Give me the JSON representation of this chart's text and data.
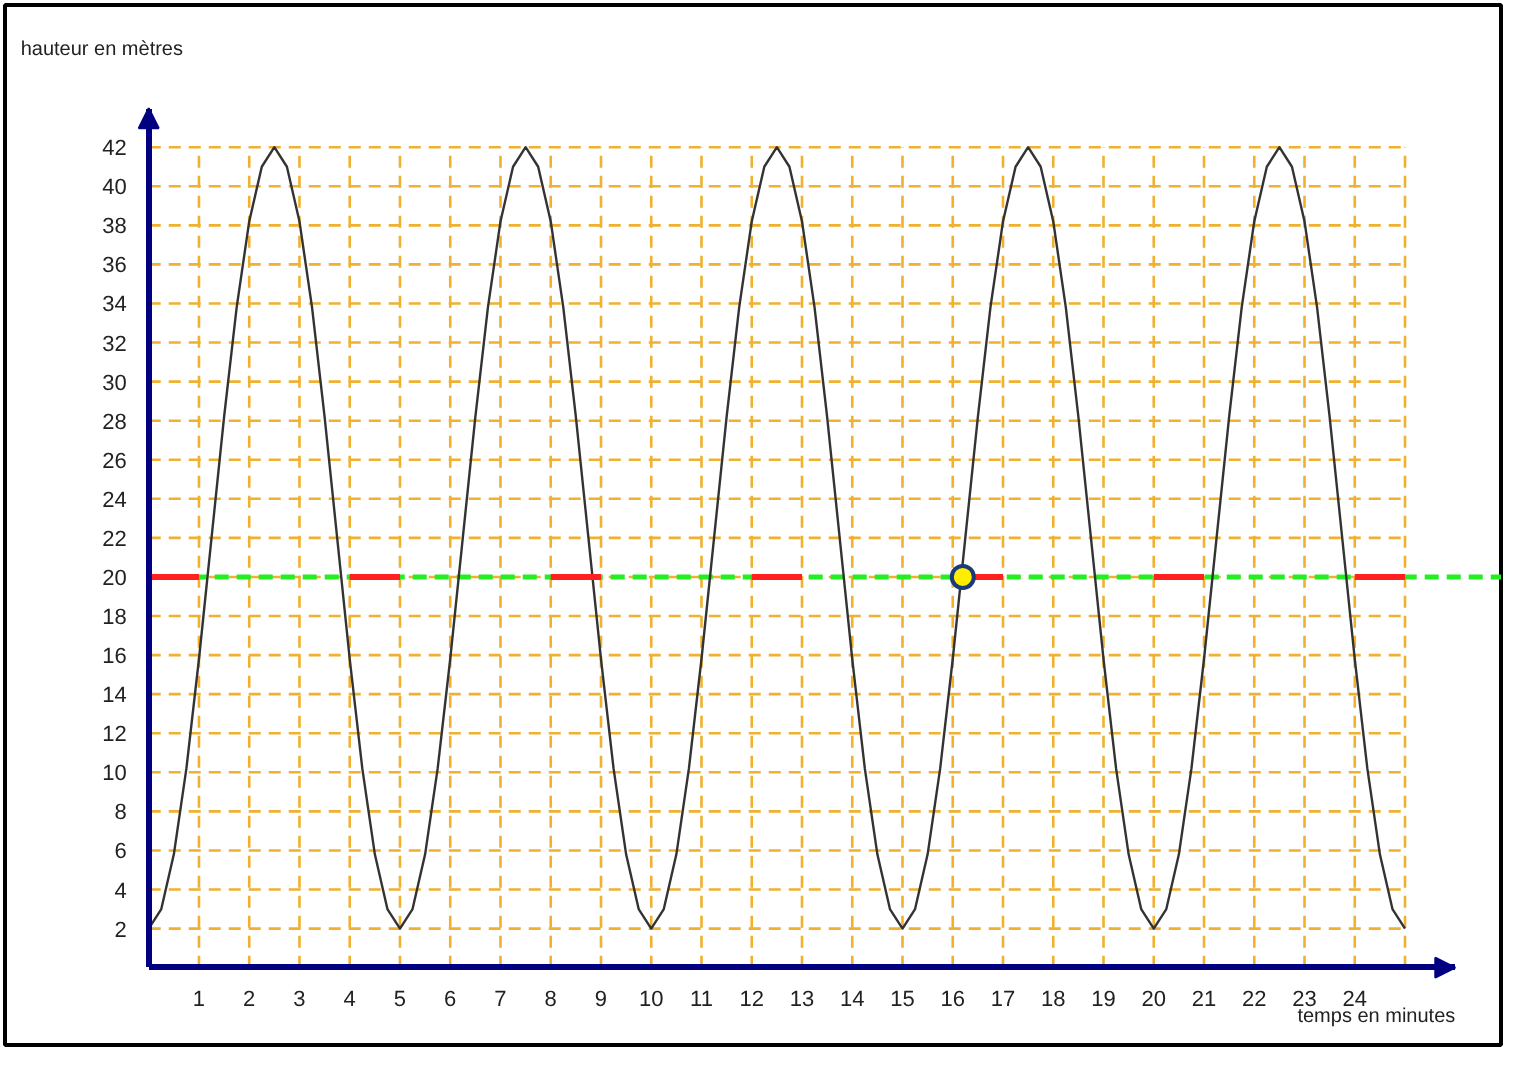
{
  "chart_data": {
    "type": "line",
    "xlabel": "temps en minutes",
    "ylabel": "hauteur en mètres",
    "xlim": [
      0,
      26
    ],
    "ylim": [
      0,
      44
    ],
    "xticks": [
      1,
      2,
      3,
      4,
      5,
      6,
      7,
      8,
      9,
      10,
      11,
      12,
      13,
      14,
      15,
      16,
      17,
      18,
      19,
      20,
      21,
      22,
      23,
      24,
      {
        "value": 25,
        "label": null
      }
    ],
    "yticks": [
      2,
      4,
      6,
      8,
      10,
      12,
      14,
      16,
      18,
      20,
      22,
      24,
      26,
      28,
      30,
      32,
      34,
      36,
      38,
      40,
      42
    ],
    "grid": true,
    "marker": "none",
    "line_style": "solid",
    "ref_lines": [
      {
        "axis": "y",
        "value": 20,
        "label": null,
        "color": "#22ee22",
        "line_style": "dashed"
      }
    ],
    "series": [
      {
        "color": "#333333",
        "x": [
          0,
          0.25,
          0.5,
          0.75,
          1,
          1.25,
          1.5,
          1.75,
          2,
          2.25,
          2.5,
          2.75,
          3,
          3.25,
          3.5,
          3.75,
          4,
          4.25,
          4.5,
          4.75,
          5,
          5.25,
          5.5,
          5.75,
          6,
          6.25,
          6.5,
          6.75,
          7,
          7.25,
          7.5,
          7.75,
          8,
          8.25,
          8.5,
          8.75,
          9,
          9.25,
          9.5,
          9.75,
          10,
          10.25,
          10.5,
          10.75,
          11,
          11.25,
          11.5,
          11.75,
          12,
          12.25,
          12.5,
          12.75,
          13,
          13.25,
          13.5,
          13.75,
          14,
          14.25,
          14.5,
          14.75,
          15,
          15.25,
          15.5,
          15.75,
          16,
          16.25,
          16.5,
          16.75,
          17,
          17.25,
          17.5,
          17.75,
          18,
          18.25,
          18.5,
          18.75,
          19,
          19.25,
          19.5,
          19.75,
          20,
          20.25,
          20.5,
          20.75,
          21,
          21.25,
          21.5,
          21.75,
          22,
          22.25,
          22.5,
          22.75,
          23,
          23.25,
          23.5,
          23.75,
          24,
          24.25,
          24.5,
          24.75,
          25
        ],
        "values": [
          2,
          3,
          5.8,
          10.2,
          15.8,
          22,
          28.2,
          33.8,
          38.2,
          41,
          42,
          41,
          38.2,
          33.8,
          28.2,
          22,
          15.8,
          10.2,
          5.8,
          3,
          2,
          3,
          5.8,
          10.2,
          15.8,
          22,
          28.2,
          33.8,
          38.2,
          41,
          42,
          41,
          38.2,
          33.8,
          28.2,
          22,
          15.8,
          10.2,
          5.8,
          3,
          2,
          3,
          5.8,
          10.2,
          15.8,
          22,
          28.2,
          33.8,
          38.2,
          41,
          42,
          41,
          38.2,
          33.8,
          28.2,
          22,
          15.8,
          10.2,
          5.8,
          3,
          2,
          3,
          5.8,
          10.2,
          15.8,
          22,
          28.2,
          33.8,
          38.2,
          41,
          42,
          41,
          38.2,
          33.8,
          28.2,
          22,
          15.8,
          10.2,
          5.8,
          3,
          2,
          3,
          5.8,
          10.2,
          15.8,
          22,
          28.2,
          33.8,
          38.2,
          41,
          42,
          41,
          38.2,
          33.8,
          28.2,
          22,
          15.8,
          10.2,
          5.8,
          3,
          2
        ]
      },
      {
        "color": "#ff2020",
        "x": [
          0,
          1,
          2,
          4,
          5,
          6,
          8,
          9,
          10,
          12,
          13,
          14,
          16,
          17,
          18,
          20,
          21,
          22,
          24,
          25
        ],
        "values": [
          20,
          20,
          null,
          20,
          20,
          null,
          20,
          20,
          null,
          20,
          20,
          null,
          20,
          20,
          null,
          20,
          20,
          null,
          20,
          20
        ]
      },
      {
        "type": "scatter",
        "marker": "circle",
        "color": "#ffee00",
        "x": [
          16.2
        ],
        "values": [
          20
        ]
      }
    ]
  }
}
